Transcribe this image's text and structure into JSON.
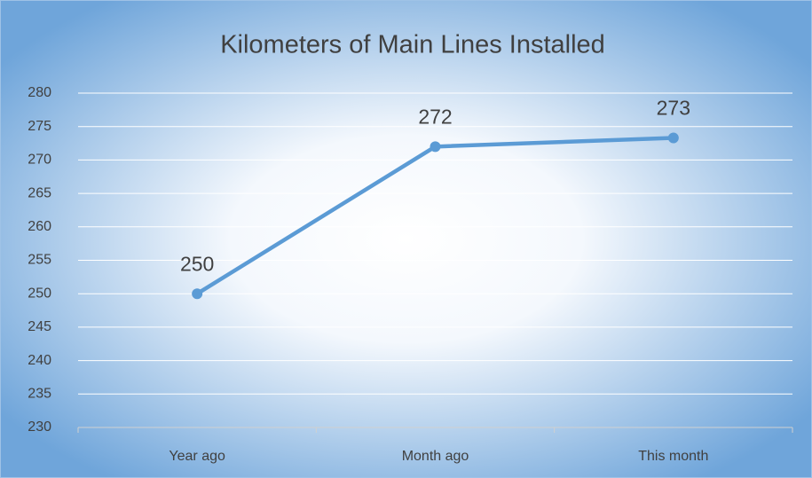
{
  "chart_data": {
    "type": "line",
    "title": "Kilometers of Main Lines Installed",
    "categories": [
      "Year ago",
      "Month ago",
      "This month"
    ],
    "series": [
      {
        "name": "Kilometers",
        "color": "#5b9bd5",
        "values": [
          250,
          272,
          273.3
        ],
        "value_labels": [
          "250",
          "272",
          "273"
        ]
      }
    ],
    "ylim": [
      230,
      280
    ],
    "yticks": [
      230,
      235,
      240,
      245,
      250,
      255,
      260,
      265,
      270,
      275,
      280
    ],
    "grid": true
  }
}
